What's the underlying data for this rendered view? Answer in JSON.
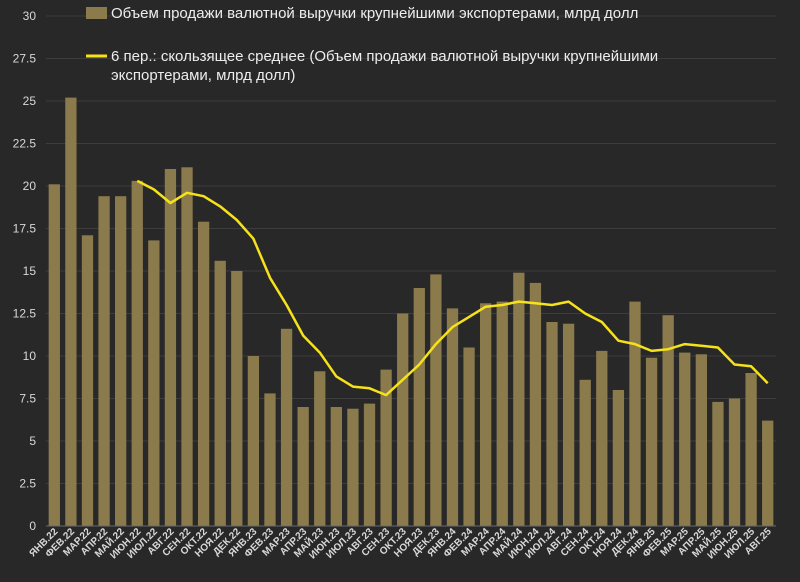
{
  "chart_data": {
    "type": "bar",
    "ylim": [
      0,
      30
    ],
    "yticks": [
      "0",
      "2.5",
      "5",
      "7.5",
      "10",
      "12.5",
      "15",
      "17.5",
      "20",
      "22.5",
      "25",
      "27.5",
      "30"
    ],
    "grid": true,
    "legend_position": "top",
    "categories": [
      "ЯНВ.22",
      "ФЕВ.22",
      "МАР.22",
      "АПР.22",
      "МАЙ.22",
      "ИЮН.22",
      "ИЮЛ.22",
      "АВГ.22",
      "СЕН.22",
      "ОКТ.22",
      "НОЯ.22",
      "ДЕК.22",
      "ЯНВ.23",
      "ФЕВ.23",
      "МАР.23",
      "АПР.23",
      "МАЙ.23",
      "ИЮН.23",
      "ИЮЛ.23",
      "АВГ.23",
      "СЕН.23",
      "ОКТ.23",
      "НОЯ.23",
      "ДЕК.23",
      "ЯНВ.24",
      "ФЕВ.24",
      "МАР.24",
      "АПР.24",
      "МАЙ.24",
      "ИЮН.24",
      "ИЮЛ.24",
      "АВГ.24",
      "СЕН.24",
      "ОКТ.24",
      "НОЯ.24",
      "ДЕК.24",
      "ЯНВ.25",
      "ФЕВ.25",
      "МАР.25",
      "АПР.25",
      "МАЙ.25",
      "ИЮН.25",
      "ИЮЛ.25",
      "АВГ.25"
    ],
    "series": [
      {
        "name": "Объем продажи  валютной выручки крупнейшими экспортерами, млрд долл",
        "kind": "bar",
        "color": "#8b7b4c",
        "values": [
          20.1,
          25.2,
          17.1,
          19.4,
          19.4,
          20.3,
          16.8,
          21.0,
          21.1,
          17.9,
          15.6,
          15.0,
          10.0,
          7.8,
          11.6,
          7.0,
          9.1,
          7.0,
          6.9,
          7.2,
          9.2,
          12.5,
          14.0,
          14.8,
          12.8,
          10.5,
          13.1,
          13.2,
          14.9,
          14.3,
          12.0,
          11.9,
          8.6,
          10.3,
          8.0,
          13.2,
          9.9,
          12.4,
          10.2,
          10.1,
          7.3,
          7.5,
          9.0,
          6.2
        ]
      },
      {
        "name": "6 пер.: скользящее среднее (Объем продажи  валютной выручки крупнейшими экспортерами, млрд долл)",
        "kind": "line",
        "color": "#f5e21a",
        "values": [
          null,
          null,
          null,
          null,
          null,
          20.3,
          19.8,
          19.0,
          19.6,
          19.4,
          18.8,
          18.0,
          16.9,
          14.6,
          13.0,
          11.2,
          10.2,
          8.8,
          8.2,
          8.1,
          7.7,
          8.6,
          9.5,
          10.7,
          11.7,
          12.3,
          12.9,
          13.0,
          13.2,
          13.1,
          13.0,
          13.2,
          12.5,
          12.0,
          10.9,
          10.7,
          10.3,
          10.4,
          10.7,
          10.6,
          10.5,
          9.5,
          9.4,
          8.4
        ]
      }
    ]
  }
}
